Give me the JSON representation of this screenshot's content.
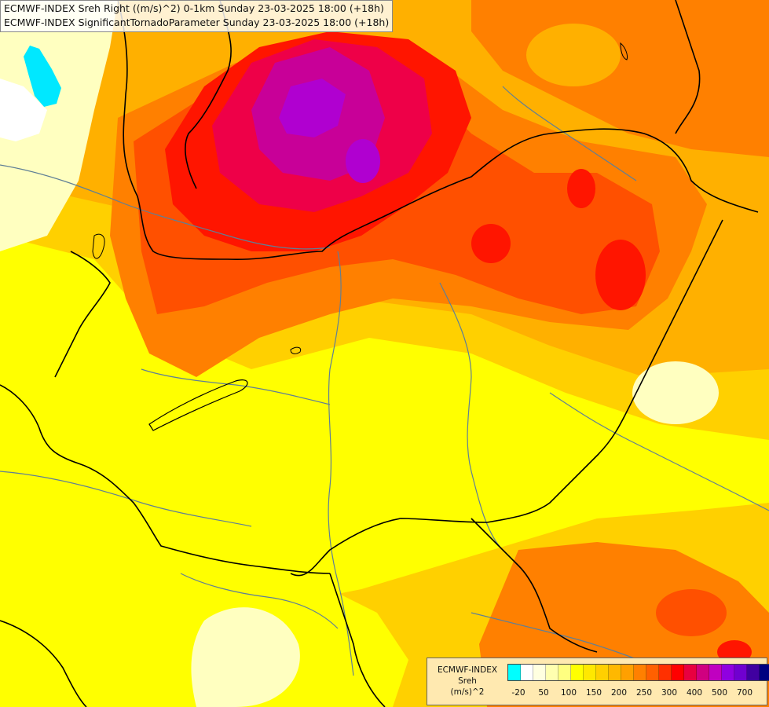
{
  "title": {
    "line1": "ECMWF-INDEX Sreh Right ((m/s)^2) 0-1km Sunday 23-03-2025 18:00 (+18h)",
    "line2": "ECMWF-INDEX SignificantTornadoParameter Sunday 23-03-2025 18:00 (+18h)"
  },
  "legend": {
    "source": "ECMWF-INDEX",
    "variable": "Sreh",
    "unit": "(m/s)^2",
    "colors": [
      "#00ffff",
      "#ffffff",
      "#ffffe0",
      "#ffffb0",
      "#ffff80",
      "#ffff00",
      "#ffe800",
      "#ffd000",
      "#ffb800",
      "#ffa000",
      "#ff8000",
      "#ff6000",
      "#ff3000",
      "#ff0000",
      "#e80040",
      "#d00080",
      "#c000c0",
      "#9000e0",
      "#7000d0",
      "#4000a0",
      "#000080"
    ],
    "ticks": [
      "-20",
      "50",
      "100",
      "150",
      "200",
      "250",
      "300",
      "400",
      "500",
      "700"
    ]
  },
  "palette": {
    "light": "#ffffc0",
    "yellow": "#ffff00",
    "gold": "#ffd000",
    "amber": "#ffb000",
    "orange": "#ff8000",
    "red_orange": "#ff5000",
    "red": "#ff1500",
    "crimson": "#ee0048",
    "magenta": "#c80098",
    "violet": "#b000d0",
    "cyan": "#00e8ff",
    "border": "#000000",
    "river": "#5f7f96"
  }
}
